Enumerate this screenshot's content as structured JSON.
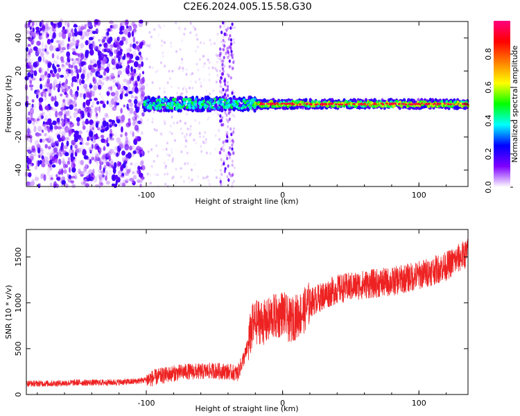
{
  "title": "C2E6.2024.005.15.58.G30",
  "chart_data": [
    {
      "type": "heatmap",
      "xlabel": "Height of straight line (km)",
      "ylabel": "Frequency (Hz)",
      "xlim": [
        -188,
        136
      ],
      "ylim": [
        -50,
        50
      ],
      "xticks": [
        -100,
        0,
        100
      ],
      "yticks": [
        -40,
        -20,
        0,
        20,
        40
      ],
      "colorbar": {
        "label": "Normalized spectral amplitude",
        "ticks": [
          0.0,
          0.2,
          0.4,
          0.6,
          0.8
        ],
        "range": [
          0,
          1
        ],
        "colormap": [
          "#ffffff",
          "#7f00ff",
          "#0000ff",
          "#00ffff",
          "#00ff00",
          "#ffff00",
          "#ff8000",
          "#ff0000",
          "#ff007f"
        ]
      },
      "features": {
        "noise_region_x": [
          -188,
          -102
        ],
        "transition_x": [
          -102,
          -20
        ],
        "faint_noise_x": [
          -100,
          -35
        ],
        "signal_band_hz": [
          -5,
          5
        ],
        "signal_peak_x": [
          -20,
          136
        ],
        "signal_peak_amplitude": 0.9
      }
    },
    {
      "type": "line",
      "xlabel": "Height of straight line (km)",
      "ylabel": "SNR (10 * v/v)",
      "xlim": [
        -188,
        136
      ],
      "ylim": [
        0,
        1800
      ],
      "xticks": [
        -100,
        0,
        100
      ],
      "yticks": [
        0,
        500,
        1000,
        1500
      ],
      "series": [
        {
          "color": "#ee2222",
          "x": [
            -188,
            -170,
            -150,
            -130,
            -110,
            -100,
            -90,
            -80,
            -70,
            -60,
            -50,
            -40,
            -33,
            -27,
            -22,
            -18,
            -12,
            -8,
            -3,
            0,
            5,
            10,
            15,
            20,
            30,
            40,
            60,
            80,
            100,
            120,
            136
          ],
          "y": [
            120,
            120,
            130,
            130,
            140,
            160,
            200,
            230,
            250,
            250,
            260,
            250,
            230,
            450,
            750,
            800,
            780,
            850,
            850,
            900,
            800,
            850,
            900,
            1000,
            1080,
            1150,
            1200,
            1230,
            1300,
            1400,
            1550
          ]
        }
      ]
    }
  ]
}
